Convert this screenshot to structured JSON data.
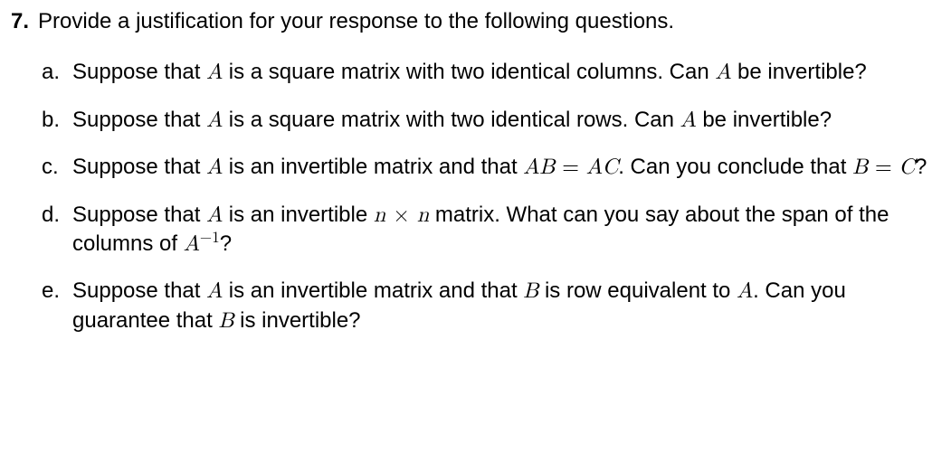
{
  "question": {
    "number": "7.",
    "prompt": "Provide a justification for your response to the following questions."
  },
  "sub_markers": [
    "a.",
    "b.",
    "c.",
    "d.",
    "e."
  ],
  "sub_a": {
    "t1": "Suppose that ",
    "m1": "A",
    "t2": " is a square matrix with two identical columns. Can ",
    "m2": "A",
    "t3": " be invertible?"
  },
  "sub_b": {
    "t1": "Suppose that ",
    "m1": "A",
    "t2": " is a square matrix with two identical rows. Can ",
    "m2": "A",
    "t3": " be invertible?"
  },
  "sub_c": {
    "t1": "Suppose that ",
    "m1": "A",
    "t2": " is an invertible matrix and that ",
    "m2": "AB",
    "eq1": " = ",
    "m3": "AC",
    "t3": ". Can you conclude that ",
    "m4": "B",
    "eq2": " = ",
    "m5": "C",
    "t4": "?"
  },
  "sub_d": {
    "t1": "Suppose that ",
    "m1": "A",
    "t2": " is an invertible ",
    "m2": "n",
    "x": " × ",
    "m3": "n",
    "t3": " matrix. What can you say about the span of the columns of ",
    "m4": "A",
    "sup_neg": "−",
    "sup_one": "1",
    "t4": "?"
  },
  "sub_e": {
    "t1": "Suppose that ",
    "m1": "A",
    "t2": " is an invertible matrix and that ",
    "m2": "B",
    "t3": " is row equivalent to ",
    "m3": "A",
    "t4": ". Can you guarantee that ",
    "m4": "B",
    "t5": " is invertible?"
  }
}
